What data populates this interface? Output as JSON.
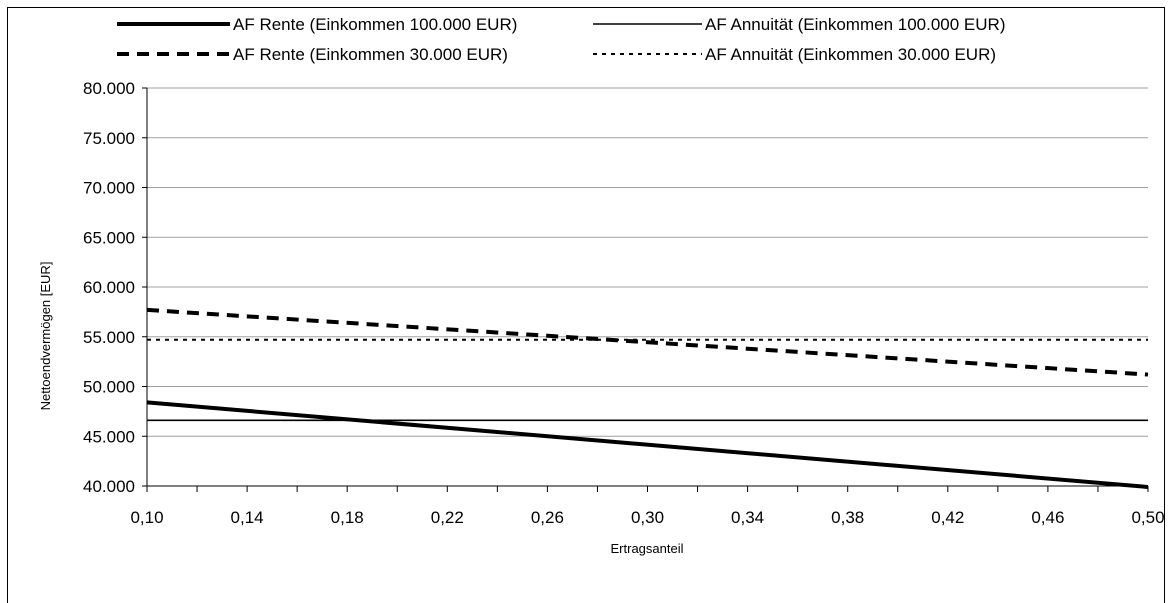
{
  "chart_data": {
    "type": "line",
    "title": "",
    "xlabel": "Ertragsanteil",
    "ylabel": "Nettoendvermögen [EUR]",
    "xlim": [
      0.1,
      0.5
    ],
    "ylim": [
      40000,
      80000
    ],
    "x_ticks": [
      "0,10",
      "0,14",
      "0,18",
      "0,22",
      "0,26",
      "0,30",
      "0,34",
      "0,38",
      "0,42",
      "0,46",
      "0,50"
    ],
    "x_tick_values": [
      0.1,
      0.14,
      0.18,
      0.22,
      0.26,
      0.3,
      0.34,
      0.38,
      0.42,
      0.46,
      0.5
    ],
    "y_ticks": [
      "40.000",
      "45.000",
      "50.000",
      "55.000",
      "60.000",
      "65.000",
      "70.000",
      "75.000",
      "80.000"
    ],
    "y_tick_values": [
      40000,
      45000,
      50000,
      55000,
      60000,
      65000,
      70000,
      75000,
      80000
    ],
    "grid": "horizontal",
    "legend_position": "top",
    "series": [
      {
        "name": "AF Rente (Einkommen 100.000 EUR)",
        "style": "thick-solid",
        "x": [
          0.1,
          0.5
        ],
        "values": [
          48400,
          39900
        ]
      },
      {
        "name": "AF Annuität (Einkommen 100.000 EUR)",
        "style": "thin-solid",
        "x": [
          0.1,
          0.5
        ],
        "values": [
          46600,
          46600
        ]
      },
      {
        "name": "AF Rente (Einkommen 30.000 EUR)",
        "style": "thick-dashed",
        "x": [
          0.1,
          0.5
        ],
        "values": [
          57700,
          51200
        ]
      },
      {
        "name": "AF Annuität (Einkommen 30.000 EUR)",
        "style": "dotted",
        "x": [
          0.1,
          0.5
        ],
        "values": [
          54700,
          54700
        ]
      }
    ]
  }
}
